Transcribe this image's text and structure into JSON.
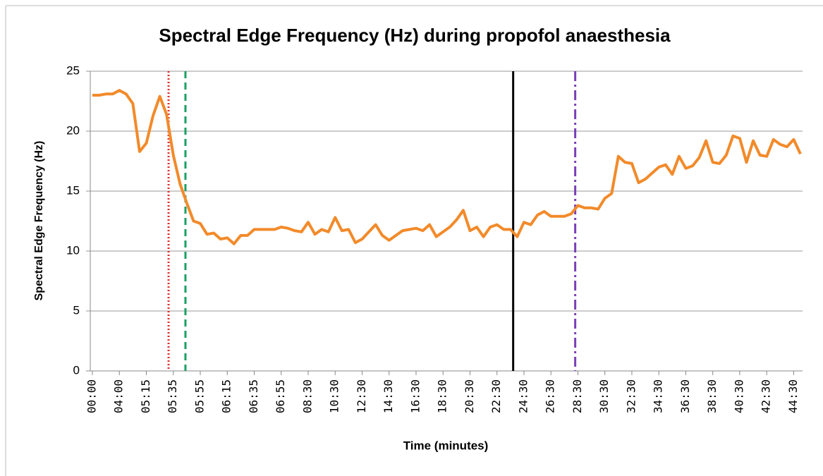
{
  "chart_data": {
    "type": "line",
    "title": "Spectral Edge Frequency (Hz) during propofol anaesthesia",
    "x_label": "Time (minutes)",
    "y_label": "Spectral Edge  Frequency (Hz)",
    "categories": [
      "00:00",
      null,
      null,
      null,
      "04:00",
      null,
      null,
      null,
      "05:15",
      null,
      null,
      null,
      "05:35",
      null,
      null,
      null,
      "05:55",
      null,
      null,
      null,
      "06:15",
      null,
      null,
      null,
      "06:35",
      null,
      null,
      null,
      "06:55",
      null,
      null,
      null,
      "08:30",
      null,
      null,
      null,
      "10:30",
      null,
      null,
      null,
      "12:30",
      null,
      null,
      null,
      "14:30",
      null,
      null,
      null,
      "16:30",
      null,
      null,
      null,
      "18:30",
      null,
      null,
      null,
      "20:30",
      null,
      null,
      null,
      "22:30",
      null,
      null,
      null,
      "24:30",
      null,
      null,
      null,
      "26:30",
      null,
      null,
      null,
      "28:30",
      null,
      null,
      null,
      "30:30",
      null,
      null,
      null,
      "32:30",
      null,
      null,
      null,
      "34:30",
      null,
      null,
      null,
      "36:30",
      null,
      null,
      null,
      "38:30",
      null,
      null,
      null,
      "40:30",
      null,
      null,
      null,
      "42:30",
      null,
      null,
      null,
      "44:30",
      null
    ],
    "series": [
      {
        "color": "#f28a2a",
        "values": [
          23.0,
          23.0,
          23.1,
          23.1,
          23.4,
          23.1,
          22.3,
          18.3,
          19.0,
          21.3,
          22.9,
          21.4,
          18.0,
          15.6,
          14.0,
          12.5,
          12.3,
          11.4,
          11.5,
          11.0,
          11.1,
          10.6,
          11.3,
          11.3,
          11.8,
          11.8,
          11.8,
          11.8,
          12.0,
          11.9,
          11.7,
          11.6,
          12.4,
          11.4,
          11.8,
          11.6,
          12.8,
          11.7,
          11.8,
          10.7,
          11.0,
          11.6,
          12.2,
          11.3,
          10.9,
          11.3,
          11.7,
          11.8,
          11.9,
          11.7,
          12.2,
          11.2,
          11.6,
          12.0,
          12.6,
          13.4,
          11.7,
          12.0,
          11.2,
          12.0,
          12.2,
          11.8,
          11.8,
          11.2,
          12.4,
          12.2,
          13.0,
          13.3,
          12.9,
          12.9,
          12.9,
          13.1,
          13.8,
          13.6,
          13.6,
          13.5,
          14.4,
          14.8,
          17.9,
          17.4,
          17.3,
          15.7,
          16.0,
          16.5,
          17.0,
          17.2,
          16.4,
          17.9,
          16.9,
          17.1,
          17.8,
          19.2,
          17.4,
          17.3,
          18.0,
          19.6,
          19.4,
          17.4,
          19.2,
          18.0,
          17.9,
          19.3,
          18.9,
          18.7,
          19.3,
          18.1
        ]
      }
    ],
    "vlines": [
      {
        "x": 11.3,
        "color": "#e03030",
        "dash": "2 3"
      },
      {
        "x": 13.8,
        "color": "#1aa064",
        "dash": "10 6"
      },
      {
        "x": 62.4,
        "color": "#000000",
        "dash": "none"
      },
      {
        "x": 71.6,
        "color": "#7a3fb5",
        "dash": "14 5 3 5"
      }
    ],
    "ylim": [
      0,
      25
    ],
    "yticks": [
      0,
      5,
      10,
      15,
      20,
      25
    ],
    "grid": true
  }
}
